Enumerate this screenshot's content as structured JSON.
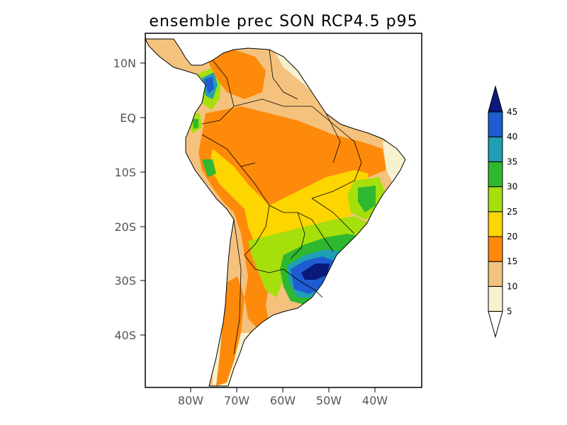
{
  "title": "ensemble prec SON RCP4.5 p95",
  "lat_ticks": [
    "10N",
    "EQ",
    "10S",
    "20S",
    "30S",
    "40S"
  ],
  "lon_ticks": [
    "80W",
    "70W",
    "60W",
    "50W",
    "40W"
  ],
  "colorbar": {
    "levels": [
      "5",
      "10",
      "15",
      "20",
      "25",
      "30",
      "35",
      "40",
      "45"
    ],
    "colors": [
      "#ffffff",
      "#f6f1cf",
      "#f5c27e",
      "#fd8a0b",
      "#fdd500",
      "#a5df0c",
      "#2fb82f",
      "#1f9fb4",
      "#1f5cd1",
      "#0a1a7a"
    ]
  }
}
